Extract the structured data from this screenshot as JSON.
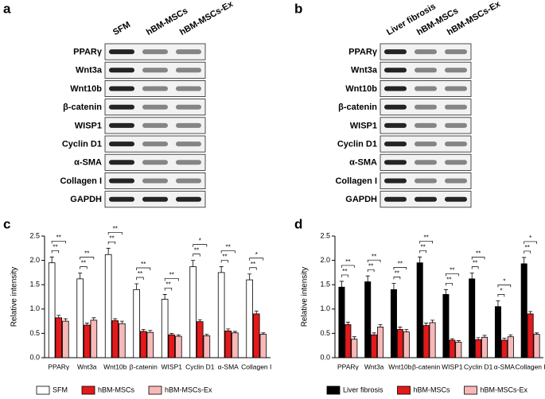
{
  "panels": [
    "a",
    "b",
    "c",
    "d"
  ],
  "blots": [
    {
      "lanes": [
        "SFM",
        "hBM-MSCs",
        "hBM-MSCs-Ex"
      ],
      "rows": [
        "PPARγ",
        "Wnt3a",
        "Wnt10b",
        "β-catenin",
        "WISP1",
        "Cyclin D1",
        "α-SMA",
        "Collagen I",
        "GAPDH"
      ]
    },
    {
      "lanes": [
        "Liver fibrosis",
        "hBM-MSCs",
        "hBM-MSCs-Ex"
      ],
      "rows": [
        "PPARγ",
        "Wnt3a",
        "Wnt10b",
        "β-catenin",
        "WISP1",
        "Cyclin D1",
        "α-SMA",
        "Collagen I",
        "GAPDH"
      ]
    }
  ],
  "chart_data": [
    {
      "type": "bar",
      "ylabel": "Relative intensity",
      "categories": [
        "PPARγ",
        "Wnt3a",
        "Wnt10b",
        "β-catenin",
        "WISP1",
        "Cyclin D1",
        "α-SMA",
        "Collagen I"
      ],
      "series": [
        {
          "name": "SFM",
          "color": "#ffffff",
          "edgecolor": "#000000",
          "values": [
            1.95,
            1.62,
            2.12,
            1.4,
            1.2,
            1.87,
            1.75,
            1.6
          ],
          "errors": [
            0.12,
            0.12,
            0.13,
            0.12,
            0.1,
            0.13,
            0.12,
            0.12
          ]
        },
        {
          "name": "hBM-MSCs",
          "color": "#e3191b",
          "edgecolor": "#000000",
          "values": [
            0.82,
            0.67,
            0.76,
            0.54,
            0.47,
            0.74,
            0.55,
            0.9
          ],
          "errors": [
            0.05,
            0.04,
            0.04,
            0.04,
            0.03,
            0.04,
            0.04,
            0.06
          ]
        },
        {
          "name": "hBM-MSCs-Ex",
          "color": "#f7b8b8",
          "edgecolor": "#000000",
          "values": [
            0.75,
            0.77,
            0.7,
            0.52,
            0.44,
            0.45,
            0.51,
            0.48
          ],
          "errors": [
            0.05,
            0.05,
            0.05,
            0.04,
            0.03,
            0.03,
            0.03,
            0.03
          ]
        }
      ],
      "significance": [
        [
          "**",
          "**"
        ],
        [
          "**",
          "**"
        ],
        [
          "**",
          "**"
        ],
        [
          "**",
          "**"
        ],
        [
          "**",
          "**"
        ],
        [
          "*",
          "**"
        ],
        [
          "**",
          "**"
        ],
        [
          "*",
          "**"
        ]
      ],
      "ylim": [
        0,
        2.5
      ],
      "yticks": [
        {
          "value": 0,
          "label": "0.0"
        },
        0.5,
        {
          "value": 1,
          "label": "1.0"
        },
        1.5,
        {
          "value": 2,
          "label": "2.0"
        },
        2.5
      ],
      "legend": "bottom"
    },
    {
      "type": "bar",
      "ylabel": "Relative intensity",
      "categories": [
        "PPARγ",
        "Wnt3a",
        "Wnt10b",
        "β-catenin",
        "WISP1",
        "Cyclin D1",
        "α-SMA",
        "Collagen I"
      ],
      "series": [
        {
          "name": "Liver fibrosis",
          "color": "#000000",
          "edgecolor": "#000000",
          "values": [
            1.45,
            1.56,
            1.4,
            1.95,
            1.3,
            1.62,
            1.05,
            1.93
          ],
          "errors": [
            0.12,
            0.12,
            0.13,
            0.12,
            0.1,
            0.12,
            0.12,
            0.13
          ]
        },
        {
          "name": "hBM-MSCs",
          "color": "#e3191b",
          "edgecolor": "#000000",
          "values": [
            0.68,
            0.47,
            0.58,
            0.66,
            0.36,
            0.37,
            0.36,
            0.9
          ],
          "errors": [
            0.05,
            0.04,
            0.05,
            0.05,
            0.03,
            0.04,
            0.04,
            0.05
          ]
        },
        {
          "name": "hBM-MSCs-Ex",
          "color": "#f7b8b8",
          "edgecolor": "#000000",
          "values": [
            0.38,
            0.63,
            0.53,
            0.72,
            0.32,
            0.42,
            0.43,
            0.48
          ],
          "errors": [
            0.05,
            0.05,
            0.05,
            0.05,
            0.03,
            0.04,
            0.04,
            0.03
          ]
        }
      ],
      "significance": [
        [
          "**",
          "**"
        ],
        [
          "**",
          "**"
        ],
        [
          "**",
          "**"
        ],
        [
          "**",
          "**"
        ],
        [
          "**",
          "**"
        ],
        [
          "**",
          "**"
        ],
        [
          "*",
          "*"
        ],
        [
          "*",
          "**"
        ]
      ],
      "ylim": [
        0,
        2.5
      ],
      "yticks": [
        {
          "value": 0,
          "label": "0.0"
        },
        0.5,
        {
          "value": 1,
          "label": "1.0"
        },
        1.5,
        {
          "value": 2,
          "label": "2.0"
        },
        2.5
      ],
      "legend": "bottom"
    }
  ]
}
